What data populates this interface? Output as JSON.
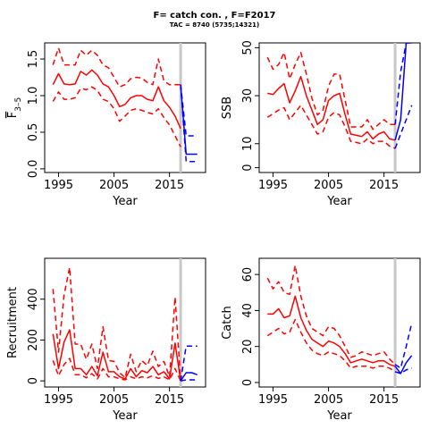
{
  "title": "F= catch con. , F=F2017",
  "subtitle": "TAC = 8740 (5735;14321)",
  "colors": {
    "hist": "#ff0000",
    "proj": "#0000ff",
    "vline": "#c8c8c8"
  },
  "chart_data": [
    {
      "type": "line",
      "ylabel": "F̅3-5",
      "ylabel_main": "F",
      "ylabel_sub": "3–5",
      "xlabel": "Year",
      "xlim": [
        1992.5,
        2021.5
      ],
      "ylim": [
        -0.05,
        1.72
      ],
      "xticks": [
        1995,
        2005,
        2015
      ],
      "yticks": [
        0.0,
        0.5,
        1.0,
        1.5
      ],
      "ytick_labels": [
        "0.0",
        "0.5",
        "1.0",
        "1.5"
      ],
      "vline": 2017,
      "series": [
        {
          "role": "hist",
          "style": "solid",
          "x": [
            1994,
            1995,
            1996,
            1997,
            1998,
            1999,
            2000,
            2001,
            2002,
            2003,
            2004,
            2005,
            2006,
            2007,
            2008,
            2009,
            2010,
            2011,
            2012,
            2013,
            2014,
            2015,
            2016,
            2017
          ],
          "values": [
            1.15,
            1.3,
            1.16,
            1.15,
            1.16,
            1.33,
            1.28,
            1.35,
            1.28,
            1.16,
            1.12,
            1.0,
            0.85,
            0.88,
            0.97,
            1.0,
            1.0,
            0.95,
            0.93,
            1.12,
            0.93,
            0.84,
            0.72,
            0.55
          ]
        },
        {
          "role": "hist",
          "style": "dashed",
          "x": [
            1994,
            1995,
            1996,
            1997,
            1998,
            1999,
            2000,
            2001,
            2002,
            2003,
            2004,
            2005,
            2006,
            2007,
            2008,
            2009,
            2010,
            2011,
            2012,
            2013,
            2014,
            2015,
            2016,
            2017
          ],
          "values": [
            1.42,
            1.65,
            1.42,
            1.42,
            1.42,
            1.62,
            1.55,
            1.62,
            1.55,
            1.42,
            1.38,
            1.25,
            1.12,
            1.15,
            1.23,
            1.25,
            1.24,
            1.18,
            1.15,
            1.5,
            1.2,
            1.15,
            1.15,
            1.15
          ]
        },
        {
          "role": "hist",
          "style": "dashed",
          "x": [
            1994,
            1995,
            1996,
            1997,
            1998,
            1999,
            2000,
            2001,
            2002,
            2003,
            2004,
            2005,
            2006,
            2007,
            2008,
            2009,
            2010,
            2011,
            2012,
            2013,
            2014,
            2015,
            2016,
            2017
          ],
          "values": [
            0.92,
            1.05,
            0.95,
            0.95,
            0.97,
            1.1,
            1.08,
            1.12,
            1.07,
            0.95,
            0.92,
            0.82,
            0.65,
            0.72,
            0.8,
            0.82,
            0.8,
            0.77,
            0.75,
            0.82,
            0.7,
            0.6,
            0.45,
            0.3
          ]
        },
        {
          "role": "proj",
          "style": "solid",
          "x": [
            2017,
            2018,
            2019,
            2020
          ],
          "values": [
            1.15,
            0.2,
            0.2,
            0.2
          ]
        },
        {
          "role": "proj",
          "style": "dashed",
          "x": [
            2017,
            2018,
            2019,
            2020
          ],
          "values": [
            1.15,
            0.45,
            0.45,
            0.45
          ]
        },
        {
          "role": "proj",
          "style": "dashed",
          "x": [
            2017,
            2018,
            2019,
            2020
          ],
          "values": [
            1.15,
            0.1,
            0.1,
            0.1
          ]
        }
      ]
    },
    {
      "type": "line",
      "ylabel": "SSB",
      "xlabel": "Year",
      "xlim": [
        1992.5,
        2021.5
      ],
      "ylim": [
        -2,
        52
      ],
      "xticks": [
        1995,
        2005,
        2015
      ],
      "yticks": [
        0,
        10,
        30,
        50
      ],
      "ytick_labels": [
        "0",
        "10",
        "30",
        "50"
      ],
      "vline": 2017,
      "series": [
        {
          "role": "hist",
          "style": "solid",
          "x": [
            1994,
            1995,
            1996,
            1997,
            1998,
            1999,
            2000,
            2001,
            2002,
            2003,
            2004,
            2005,
            2006,
            2007,
            2008,
            2009,
            2010,
            2011,
            2012,
            2013,
            2014,
            2015,
            2016,
            2017
          ],
          "values": [
            31,
            30.5,
            33,
            35,
            27,
            32,
            38,
            30,
            24,
            18,
            20,
            28,
            30,
            31,
            22,
            14,
            13.5,
            13,
            15,
            12,
            14,
            15,
            12,
            11.5
          ]
        },
        {
          "role": "hist",
          "style": "dashed",
          "x": [
            1994,
            1995,
            1996,
            1997,
            1998,
            1999,
            2000,
            2001,
            2002,
            2003,
            2004,
            2005,
            2006,
            2007,
            2008,
            2009,
            2010,
            2011,
            2012,
            2013,
            2014,
            2015,
            2016,
            2017
          ],
          "values": [
            46,
            41,
            43,
            48,
            37,
            43,
            48,
            39,
            29,
            22,
            24,
            34,
            39,
            39,
            28,
            17,
            17,
            17,
            20,
            16,
            18,
            20,
            18,
            18
          ]
        },
        {
          "role": "hist",
          "style": "dashed",
          "x": [
            1994,
            1995,
            1996,
            1997,
            1998,
            1999,
            2000,
            2001,
            2002,
            2003,
            2004,
            2005,
            2006,
            2007,
            2008,
            2009,
            2010,
            2011,
            2012,
            2013,
            2014,
            2015,
            2016,
            2017
          ],
          "values": [
            21,
            22.5,
            24,
            25,
            20,
            23,
            26,
            22,
            18,
            14,
            15,
            21,
            23,
            22,
            17,
            11,
            10.5,
            10,
            12,
            10,
            11,
            11,
            9,
            8
          ]
        },
        {
          "role": "proj",
          "style": "solid",
          "x": [
            2017,
            2018,
            2019,
            2020
          ],
          "values": [
            11.5,
            20,
            52,
            52
          ]
        },
        {
          "role": "proj",
          "style": "dashed",
          "x": [
            2017,
            2018,
            2019,
            2020
          ],
          "values": [
            18,
            40,
            52,
            52
          ]
        },
        {
          "role": "proj",
          "style": "dashed",
          "x": [
            2017,
            2018,
            2019,
            2020
          ],
          "values": [
            8,
            14,
            20,
            26
          ]
        }
      ]
    },
    {
      "type": "line",
      "ylabel": "Recruitment",
      "xlabel": "Year",
      "xlim": [
        1992.5,
        2021.5
      ],
      "ylim": [
        -30,
        600
      ],
      "xticks": [
        1995,
        2005,
        2015
      ],
      "yticks": [
        0,
        200,
        400
      ],
      "ytick_labels": [
        "0",
        "200",
        "400"
      ],
      "vline": 2017,
      "series": [
        {
          "role": "hist",
          "style": "solid",
          "x": [
            1994,
            1995,
            1996,
            1997,
            1998,
            1999,
            2000,
            2001,
            2002,
            2003,
            2004,
            2005,
            2006,
            2007,
            2008,
            2009,
            2010,
            2011,
            2012,
            2013,
            2014,
            2015,
            2016,
            2017
          ],
          "values": [
            230,
            60,
            190,
            250,
            60,
            60,
            30,
            70,
            25,
            140,
            45,
            45,
            20,
            10,
            60,
            20,
            50,
            40,
            70,
            30,
            45,
            10,
            185,
            0
          ]
        },
        {
          "role": "hist",
          "style": "dashed",
          "x": [
            1994,
            1995,
            1996,
            1997,
            1998,
            1999,
            2000,
            2001,
            2002,
            2003,
            2004,
            2005,
            2006,
            2007,
            2008,
            2009,
            2010,
            2011,
            2012,
            2013,
            2014,
            2015,
            2016,
            2017
          ],
          "values": [
            450,
            140,
            420,
            555,
            180,
            180,
            105,
            180,
            60,
            265,
            100,
            95,
            40,
            15,
            130,
            45,
            100,
            75,
            145,
            70,
            95,
            20,
            410,
            0
          ]
        },
        {
          "role": "hist",
          "style": "dashed",
          "x": [
            1994,
            1995,
            1996,
            1997,
            1998,
            1999,
            2000,
            2001,
            2002,
            2003,
            2004,
            2005,
            2006,
            2007,
            2008,
            2009,
            2010,
            2011,
            2012,
            2013,
            2014,
            2015,
            2016,
            2017
          ],
          "values": [
            100,
            25,
            80,
            110,
            30,
            30,
            15,
            35,
            10,
            60,
            20,
            20,
            10,
            5,
            20,
            10,
            20,
            15,
            25,
            12,
            20,
            5,
            60,
            0
          ]
        },
        {
          "role": "proj",
          "style": "solid",
          "x": [
            2017,
            2018,
            2019,
            2020
          ],
          "values": [
            0,
            40,
            40,
            30
          ]
        },
        {
          "role": "proj",
          "style": "dashed",
          "x": [
            2017,
            2018,
            2019,
            2020
          ],
          "values": [
            0,
            170,
            170,
            170
          ]
        },
        {
          "role": "proj",
          "style": "dashed",
          "x": [
            2017,
            2018,
            2019,
            2020
          ],
          "values": [
            0,
            5,
            5,
            5
          ]
        }
      ]
    },
    {
      "type": "line",
      "ylabel": "Catch",
      "xlabel": "Year",
      "xlim": [
        1992.5,
        2021.5
      ],
      "ylim": [
        -2.5,
        69
      ],
      "xticks": [
        1995,
        2005,
        2015
      ],
      "yticks": [
        0,
        20,
        40,
        60
      ],
      "ytick_labels": [
        "0",
        "20",
        "40",
        "60"
      ],
      "vline": 2017,
      "series": [
        {
          "role": "hist",
          "style": "solid",
          "x": [
            1994,
            1995,
            1996,
            1997,
            1998,
            1999,
            2000,
            2001,
            2002,
            2003,
            2004,
            2005,
            2006,
            2007,
            2008,
            2009,
            2010,
            2011,
            2012,
            2013,
            2014,
            2015,
            2016,
            2017
          ],
          "values": [
            38,
            38,
            41,
            36,
            37,
            48,
            36,
            29,
            24,
            22,
            20,
            23,
            22,
            20,
            16,
            11,
            12,
            13,
            12,
            11,
            12,
            12,
            10,
            9
          ]
        },
        {
          "role": "hist",
          "style": "dashed",
          "x": [
            1994,
            1995,
            1996,
            1997,
            1998,
            1999,
            2000,
            2001,
            2002,
            2003,
            2004,
            2005,
            2006,
            2007,
            2008,
            2009,
            2010,
            2011,
            2012,
            2013,
            2014,
            2015,
            2016,
            2017
          ],
          "values": [
            58,
            52,
            56,
            50,
            49,
            65,
            48,
            37,
            30,
            28,
            26,
            31,
            30,
            26,
            20,
            14,
            15,
            17,
            16,
            15,
            16,
            17,
            13,
            10
          ]
        },
        {
          "role": "hist",
          "style": "dashed",
          "x": [
            1994,
            1995,
            1996,
            1997,
            1998,
            1999,
            2000,
            2001,
            2002,
            2003,
            2004,
            2005,
            2006,
            2007,
            2008,
            2009,
            2010,
            2011,
            2012,
            2013,
            2014,
            2015,
            2016,
            2017
          ],
          "values": [
            26,
            28,
            30,
            27,
            28,
            35,
            28,
            22,
            18,
            16,
            15,
            17,
            16,
            15,
            12,
            8,
            9,
            9,
            9,
            8,
            9,
            9,
            8,
            6
          ]
        },
        {
          "role": "proj",
          "style": "solid",
          "x": [
            2017,
            2018,
            2019,
            2020
          ],
          "values": [
            9,
            5,
            11,
            15
          ]
        },
        {
          "role": "proj",
          "style": "dashed",
          "x": [
            2017,
            2018,
            2019,
            2020
          ],
          "values": [
            10,
            8,
            20,
            33
          ]
        },
        {
          "role": "proj",
          "style": "dashed",
          "x": [
            2017,
            2018,
            2019,
            2020
          ],
          "values": [
            6,
            5,
            7,
            8
          ]
        }
      ]
    }
  ]
}
